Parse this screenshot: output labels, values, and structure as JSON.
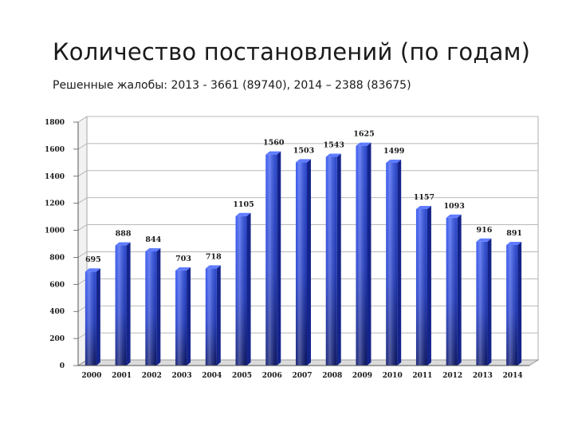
{
  "slide": {
    "title": "Количество постановлений (по годам)",
    "subtitle": "Решенные жалобы: 2013 -  3661 (89740), 2014 – 2388 (83675)"
  },
  "chart_data": {
    "type": "bar",
    "categories": [
      "2000",
      "2001",
      "2002",
      "2003",
      "2004",
      "2005",
      "2006",
      "2007",
      "2008",
      "2009",
      "2010",
      "2011",
      "2012",
      "2013",
      "2014"
    ],
    "values": [
      695,
      888,
      844,
      703,
      718,
      1105,
      1560,
      1503,
      1543,
      1625,
      1499,
      1157,
      1093,
      916,
      891
    ],
    "ylim": [
      0,
      1800
    ],
    "yticks": [
      0,
      200,
      400,
      600,
      800,
      1000,
      1200,
      1400,
      1600,
      1800
    ],
    "grid": true,
    "legend": "none",
    "style": "3d-cylinder-bars",
    "colors": {
      "bar_front": "#2a4ae0",
      "bar_dark": "#0d1a70",
      "bar_top": "#5f7cff",
      "bar_side": "#14248a",
      "grid": "#b8b8b8",
      "wall": "#ffffff"
    }
  }
}
